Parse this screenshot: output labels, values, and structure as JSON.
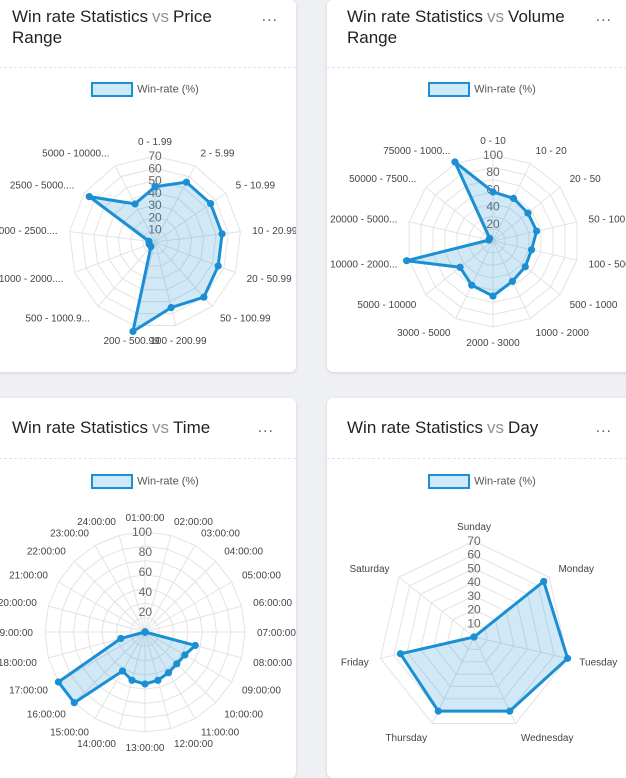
{
  "series_label": "Win-rate (%)",
  "menu_glyph": "...",
  "colors": {
    "line": "#1a8fd4",
    "fill": "rgba(26,143,212,0.2)",
    "grid": "#e3e3e3"
  },
  "cards": [
    {
      "title_left": "Win rate Statistics",
      "vs": "vs",
      "title_right": "Price",
      "title_line2": "Range"
    },
    {
      "title_left": "Win rate Statistics",
      "vs": "vs",
      "title_right": "Volume",
      "title_line2": "Range"
    },
    {
      "title_left": "Win rate Statistics",
      "vs": "vs",
      "title_right": "Time",
      "title_line2": ""
    },
    {
      "title_left": "Win rate Statistics",
      "vs": "vs",
      "title_right": "Day",
      "title_line2": ""
    }
  ],
  "chart_data": [
    {
      "type": "radar",
      "title": "Win rate Statistics vs Price Range",
      "categories": [
        "0 - 1.99",
        "2 - 5.99",
        "5 - 10.99",
        "10 - 20.99",
        "20 - 50.99",
        "50 - 100.99",
        "100 - 200.99",
        "200 - 500.99",
        "500 - 1000.9...",
        "1000 - 2000....",
        "2000 - 2500....",
        "2500 - 5000....",
        "5000 - 10000..."
      ],
      "ticks": [
        10,
        20,
        30,
        40,
        50,
        60,
        70
      ],
      "rmax": 70,
      "series": [
        {
          "name": "Win-rate (%)",
          "values": [
            45,
            55,
            55,
            55,
            55,
            60,
            55,
            75,
            5,
            5,
            5,
            65,
            35
          ]
        }
      ]
    },
    {
      "type": "radar",
      "title": "Win rate Statistics vs Volume Range",
      "categories": [
        "0 - 10",
        "10 - 20",
        "20 - 50",
        "50 - 100",
        "100 - 500",
        "500 - 1000",
        "1000 - 2000",
        "2000 - 3000",
        "3000 - 5000",
        "5000 - 10000",
        "10000 - 2000...",
        "20000 - 5000...",
        "50000 - 7500...",
        "75000 - 1000..."
      ],
      "ticks": [
        20,
        40,
        60,
        80,
        100
      ],
      "rmax": 100,
      "series": [
        {
          "name": "Win-rate (%)",
          "values": [
            57,
            55,
            52,
            52,
            46,
            48,
            52,
            64,
            57,
            49,
            103,
            5,
            5,
            102
          ]
        }
      ]
    },
    {
      "type": "radar",
      "title": "Win rate Statistics vs Time",
      "categories": [
        "01:00:00",
        "02:00:00",
        "03:00:00",
        "04:00:00",
        "05:00:00",
        "06:00:00",
        "07:00:00",
        "08:00:00",
        "09:00:00",
        "10:00:00",
        "11:00:00",
        "12:00:00",
        "13:00:00",
        "14:00:00",
        "15:00:00",
        "16:00:00",
        "17:00:00",
        "18:00:00",
        "19:00:00",
        "20:00:00",
        "21:00:00",
        "22:00:00",
        "23:00:00",
        "24:00:00"
      ],
      "ticks": [
        20,
        40,
        60,
        80,
        100
      ],
      "rmax": 100,
      "series": [
        {
          "name": "Win-rate (%)",
          "values": [
            0,
            0,
            0,
            0,
            0,
            0,
            0,
            52,
            46,
            45,
            47,
            50,
            52,
            50,
            45,
            100,
            100,
            25,
            0,
            0,
            0,
            0,
            0,
            0
          ]
        }
      ]
    },
    {
      "type": "radar",
      "title": "Win rate Statistics vs Day",
      "categories": [
        "Sunday",
        "Monday",
        "Tuesday",
        "Wednesday",
        "Thursday",
        "Friday",
        "Saturday"
      ],
      "ticks": [
        10,
        20,
        30,
        40,
        50,
        60,
        70
      ],
      "rmax": 70,
      "series": [
        {
          "name": "Win-rate (%)",
          "values": [
            0,
            65,
            70,
            60,
            60,
            55,
            0
          ]
        }
      ]
    }
  ]
}
